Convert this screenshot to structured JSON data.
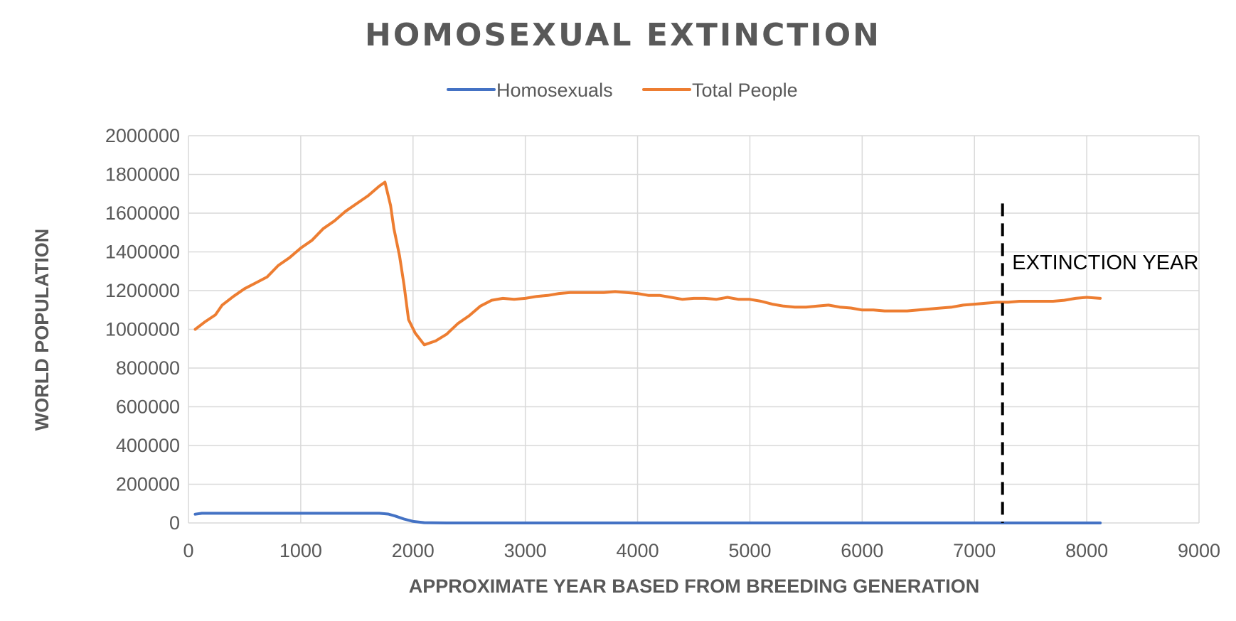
{
  "chart_data": {
    "type": "line",
    "title": "HOMOSEXUAL EXTINCTION",
    "xlabel": "APPROXIMATE YEAR BASED FROM BREEDING GENERATION",
    "ylabel": "WORLD POPULATION",
    "xlim": [
      0,
      9000
    ],
    "ylim": [
      0,
      2000000
    ],
    "x_ticks": [
      "0",
      "1000",
      "2000",
      "3000",
      "4000",
      "5000",
      "6000",
      "7000",
      "8000",
      "9000"
    ],
    "y_ticks": [
      "0",
      "200000",
      "400000",
      "600000",
      "800000",
      "1000000",
      "1200000",
      "1400000",
      "1600000",
      "1800000",
      "2000000"
    ],
    "grid": true,
    "legend_position": "top",
    "series": [
      {
        "name": "Homosexuals",
        "color": "#4472C4",
        "points": [
          [
            60,
            45000
          ],
          [
            120,
            50000
          ],
          [
            1000,
            50000
          ],
          [
            1500,
            50000
          ],
          [
            1700,
            50000
          ],
          [
            1780,
            46000
          ],
          [
            1840,
            36000
          ],
          [
            1920,
            20000
          ],
          [
            2000,
            8000
          ],
          [
            2100,
            1500
          ],
          [
            2300,
            0
          ],
          [
            8120,
            0
          ]
        ]
      },
      {
        "name": "Total People",
        "color": "#ED7D31",
        "points": [
          [
            60,
            1000000
          ],
          [
            150,
            1040000
          ],
          [
            240,
            1075000
          ],
          [
            300,
            1125000
          ],
          [
            400,
            1170000
          ],
          [
            500,
            1210000
          ],
          [
            600,
            1240000
          ],
          [
            700,
            1270000
          ],
          [
            800,
            1330000
          ],
          [
            900,
            1370000
          ],
          [
            1000,
            1420000
          ],
          [
            1100,
            1460000
          ],
          [
            1200,
            1520000
          ],
          [
            1300,
            1560000
          ],
          [
            1400,
            1610000
          ],
          [
            1500,
            1650000
          ],
          [
            1600,
            1690000
          ],
          [
            1700,
            1740000
          ],
          [
            1750,
            1760000
          ],
          [
            1800,
            1640000
          ],
          [
            1830,
            1520000
          ],
          [
            1880,
            1380000
          ],
          [
            1920,
            1230000
          ],
          [
            1960,
            1050000
          ],
          [
            2020,
            980000
          ],
          [
            2100,
            920000
          ],
          [
            2200,
            940000
          ],
          [
            2300,
            975000
          ],
          [
            2400,
            1030000
          ],
          [
            2500,
            1070000
          ],
          [
            2600,
            1120000
          ],
          [
            2700,
            1150000
          ],
          [
            2800,
            1160000
          ],
          [
            2900,
            1155000
          ],
          [
            3000,
            1160000
          ],
          [
            3100,
            1170000
          ],
          [
            3200,
            1175000
          ],
          [
            3300,
            1185000
          ],
          [
            3400,
            1190000
          ],
          [
            3500,
            1190000
          ],
          [
            3600,
            1190000
          ],
          [
            3700,
            1190000
          ],
          [
            3800,
            1195000
          ],
          [
            3900,
            1190000
          ],
          [
            4000,
            1185000
          ],
          [
            4100,
            1175000
          ],
          [
            4200,
            1175000
          ],
          [
            4300,
            1165000
          ],
          [
            4400,
            1155000
          ],
          [
            4500,
            1160000
          ],
          [
            4600,
            1160000
          ],
          [
            4700,
            1155000
          ],
          [
            4800,
            1165000
          ],
          [
            4900,
            1155000
          ],
          [
            5000,
            1155000
          ],
          [
            5100,
            1145000
          ],
          [
            5200,
            1130000
          ],
          [
            5300,
            1120000
          ],
          [
            5400,
            1115000
          ],
          [
            5500,
            1115000
          ],
          [
            5600,
            1120000
          ],
          [
            5700,
            1125000
          ],
          [
            5800,
            1115000
          ],
          [
            5900,
            1110000
          ],
          [
            6000,
            1100000
          ],
          [
            6100,
            1100000
          ],
          [
            6200,
            1095000
          ],
          [
            6300,
            1095000
          ],
          [
            6400,
            1095000
          ],
          [
            6500,
            1100000
          ],
          [
            6600,
            1105000
          ],
          [
            6700,
            1110000
          ],
          [
            6800,
            1115000
          ],
          [
            6900,
            1125000
          ],
          [
            7000,
            1130000
          ],
          [
            7100,
            1135000
          ],
          [
            7200,
            1140000
          ],
          [
            7300,
            1140000
          ],
          [
            7400,
            1145000
          ],
          [
            7500,
            1145000
          ],
          [
            7600,
            1145000
          ],
          [
            7700,
            1145000
          ],
          [
            7800,
            1150000
          ],
          [
            7900,
            1160000
          ],
          [
            8000,
            1165000
          ],
          [
            8120,
            1160000
          ]
        ]
      }
    ],
    "annotations": [
      {
        "type": "vertical-dashed-line",
        "x": 7250,
        "y_top": 1650000,
        "color": "#000000"
      },
      {
        "type": "text",
        "text": "EXTINCTION YEAR",
        "x": 7260,
        "y": 1310000
      }
    ]
  }
}
